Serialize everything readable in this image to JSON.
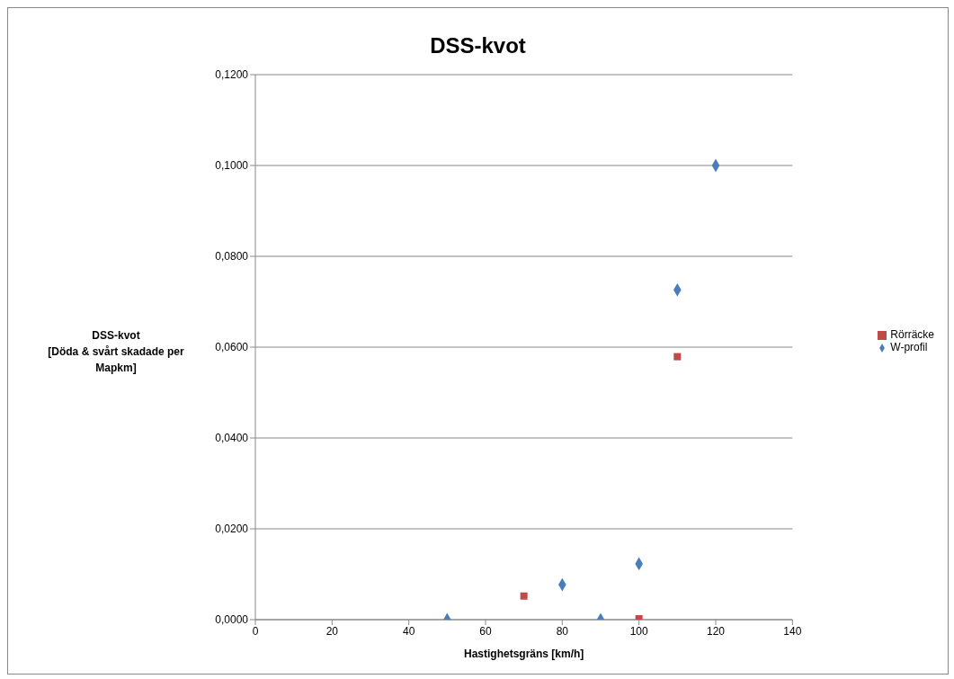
{
  "chart_data": {
    "type": "scatter",
    "title": "DSS-kvot",
    "xlabel": "Hastighetsgräns [km/h]",
    "ylabel": "DSS-kvot\n[Döda & svårt skadade per Mapkm]",
    "series": [
      {
        "name": "W-profil",
        "color": "#4a7ebb",
        "marker": "diamond",
        "x": [
          50,
          80,
          90,
          100,
          110,
          120
        ],
        "values": [
          0,
          0.0077,
          0,
          0.0123,
          0.0726,
          0.1
        ]
      },
      {
        "name": "Rörräcke",
        "color": "#be4b48",
        "marker": "square",
        "x": [
          70,
          100,
          110
        ],
        "values": [
          0.0052,
          0.0002,
          0.0579
        ]
      }
    ],
    "xlim": [
      0,
      140
    ],
    "xticks": [
      0,
      20,
      40,
      60,
      80,
      100,
      120,
      140
    ],
    "ylim": [
      0,
      0.12
    ],
    "yticks": [
      {
        "value": 0,
        "label": "0,0000"
      },
      {
        "value": 0.02,
        "label": "0,0200"
      },
      {
        "value": 0.04,
        "label": "0,0400"
      },
      {
        "value": 0.06,
        "label": "0,0600"
      },
      {
        "value": 0.08,
        "label": "0,0800"
      },
      {
        "value": 0.1,
        "label": "0,1000"
      },
      {
        "value": 0.12,
        "label": "0,1200"
      }
    ],
    "grid": "y",
    "legend": "right"
  }
}
